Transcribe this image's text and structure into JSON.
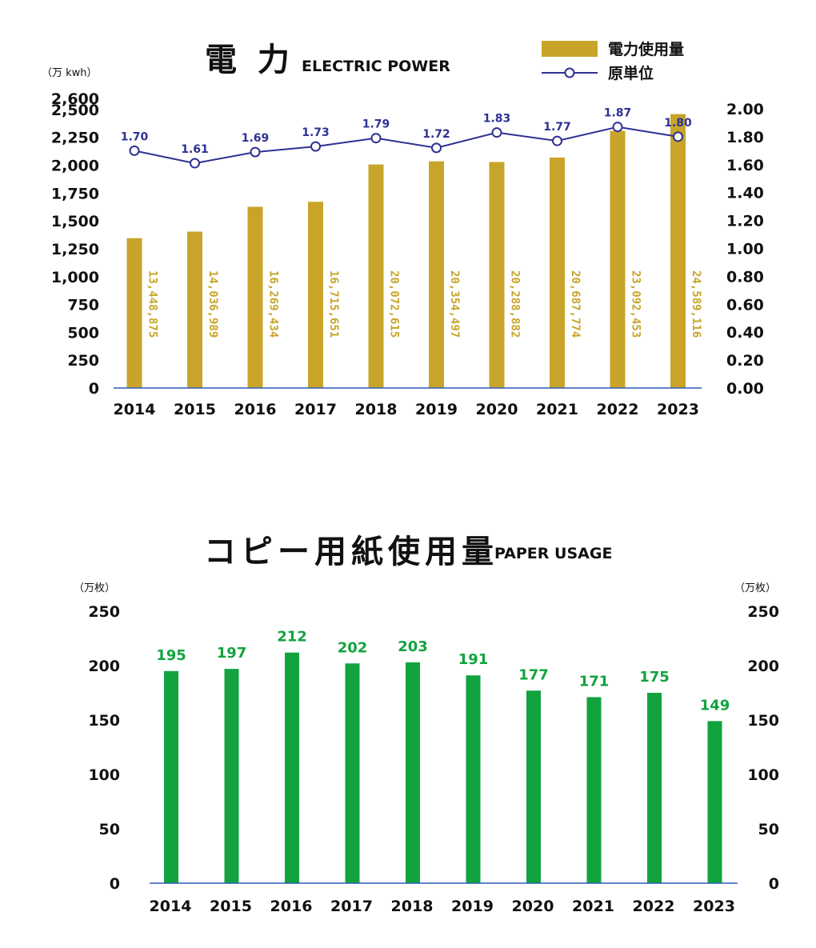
{
  "chart_data": [
    {
      "type": "bar",
      "title": "電 力",
      "subtitle": "ELECTRIC POWER",
      "y_unit_left": "（万 kwh）",
      "categories": [
        "2014",
        "2015",
        "2016",
        "2017",
        "2018",
        "2019",
        "2020",
        "2021",
        "2022",
        "2023"
      ],
      "left_axis": {
        "ylim": [
          0,
          2600
        ],
        "ticks": [
          0,
          250,
          500,
          750,
          1000,
          1250,
          1500,
          1750,
          2000,
          2250,
          2500,
          2600
        ],
        "tick_labels": [
          "0",
          "250",
          "500",
          "750",
          "1,000",
          "1,250",
          "1,500",
          "1,750",
          "2,000",
          "2,250",
          "2,500",
          "2,600"
        ]
      },
      "right_axis": {
        "ylim": [
          0,
          2.0
        ],
        "ticks": [
          0,
          0.2,
          0.4,
          0.6,
          0.8,
          1.0,
          1.2,
          1.4,
          1.6,
          1.8,
          2.0
        ],
        "tick_labels": [
          "0.00",
          "0.20",
          "0.40",
          "0.60",
          "0.80",
          "1.00",
          "1.20",
          "1.40",
          "1.60",
          "1.80",
          "2.00"
        ]
      },
      "series": [
        {
          "name": "電力使用量",
          "kind": "bar",
          "axis": "left",
          "color": "#c8a52a",
          "values": [
            1345,
            1404,
            1627,
            1672,
            2007,
            2035,
            2029,
            2069,
            2309,
            2459
          ],
          "labels": [
            "13,448,875",
            "14,036,989",
            "16,269,434",
            "16,715,651",
            "20,072,615",
            "20,354,497",
            "20,288,882",
            "20,687,774",
            "23,092,453",
            "24,589,116"
          ]
        },
        {
          "name": "原単位",
          "kind": "line",
          "axis": "right",
          "color": "#2e3192",
          "values": [
            1.7,
            1.61,
            1.69,
            1.73,
            1.79,
            1.72,
            1.83,
            1.77,
            1.87,
            1.8
          ],
          "labels": [
            "1.70",
            "1.61",
            "1.69",
            "1.73",
            "1.79",
            "1.72",
            "1.83",
            "1.77",
            "1.87",
            "1.80"
          ]
        }
      ],
      "legend": {
        "placement": "top-right",
        "items": [
          "電力使用量",
          "原単位"
        ]
      }
    },
    {
      "type": "bar",
      "title": "コピー用紙使用量",
      "subtitle": "PAPER USAGE",
      "y_unit_left": "（万枚）",
      "y_unit_right": "（万枚）",
      "categories": [
        "2014",
        "2015",
        "2016",
        "2017",
        "2018",
        "2019",
        "2020",
        "2021",
        "2022",
        "2023"
      ],
      "ylim": [
        0,
        250
      ],
      "ticks": [
        0,
        50,
        100,
        150,
        200,
        250
      ],
      "tick_labels": [
        "0",
        "50",
        "100",
        "150",
        "200",
        "250"
      ],
      "series": [
        {
          "kind": "bar",
          "color": "#12a33e",
          "values": [
            195,
            197,
            212,
            202,
            203,
            191,
            177,
            171,
            175,
            149
          ],
          "labels": [
            "195",
            "197",
            "212",
            "202",
            "203",
            "191",
            "177",
            "171",
            "175",
            "149"
          ]
        }
      ]
    }
  ]
}
